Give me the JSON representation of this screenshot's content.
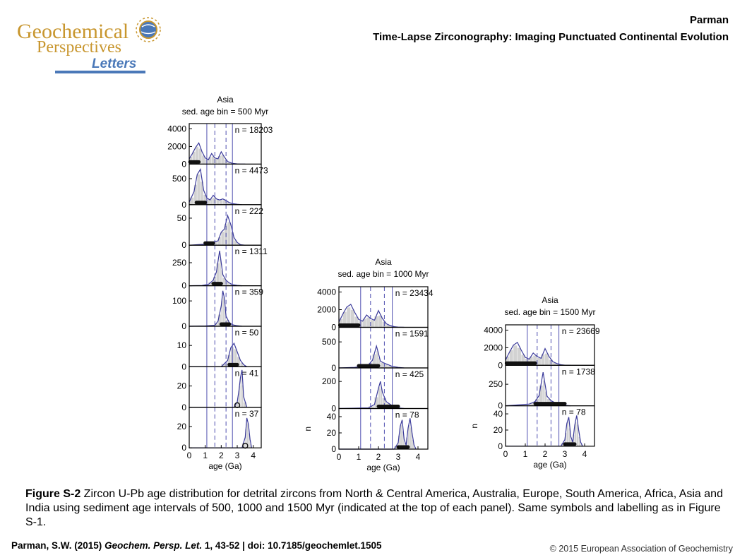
{
  "header": {
    "journal_logo_line1": "Geochemical",
    "journal_logo_line2": "Perspectives",
    "journal_logo_line3": "Letters",
    "author": "Parman",
    "title": "Time-Lapse Zirconography: Imaging Punctuated Continental Evolution"
  },
  "colors": {
    "logo_gold": "#c8962e",
    "logo_blue": "#4a78b8",
    "histogram_fill": "#d2d2d2",
    "curve": "#3a3a9a",
    "reference_line": "#5050b0"
  },
  "caption": {
    "label": "Figure S-2",
    "text": " Zircon U-Pb age distribution for detrital zircons from North & Central America, Australia, Europe, South America, Africa, Asia and India using sediment age intervals of 500, 1000 and 1500 Myr (indicated at the top of each panel). Same symbols and labelling as in Figure S-1."
  },
  "footer": {
    "author": "Parman, S.W. (2015) ",
    "journal": "Geochem. Persp. Let.",
    "details": " 1, 43-52 | doi: 10.7185/geochemlet.1505",
    "copyright": "© 2015 European Association of Geochemistry"
  },
  "chart_data": [
    {
      "type": "area",
      "title": "Asia",
      "subtitle": "sed. age bin = 500 Myr",
      "xlabel": "age (Ga)",
      "ylabel": "",
      "xlim": [
        0,
        4.5
      ],
      "xticks": [
        "0",
        "1",
        "2",
        "3",
        "4"
      ],
      "reference_lines": {
        "solid": [
          1.1,
          2.7
        ],
        "dashed": [
          1.6,
          2.3
        ]
      },
      "panels": [
        {
          "n_label": "n = 18203",
          "yticks": [
            "4000",
            "2000",
            "0"
          ],
          "ymax": 4600,
          "x": [
            0,
            0.2,
            0.4,
            0.6,
            0.8,
            1.0,
            1.2,
            1.4,
            1.6,
            1.8,
            2.0,
            2.2,
            2.4,
            2.6,
            2.8,
            3.0,
            3.2,
            3.5
          ],
          "y": [
            600,
            1200,
            1900,
            2400,
            1400,
            700,
            500,
            1200,
            700,
            600,
            1400,
            800,
            300,
            150,
            60,
            20,
            5,
            0
          ],
          "bin_markers": [
            [
              0.05,
              0.45
            ],
            [
              0.45,
              0.6
            ]
          ]
        },
        {
          "n_label": "n = 4473",
          "yticks": [
            "500",
            "0"
          ],
          "ymax": 780,
          "x": [
            0,
            0.3,
            0.5,
            0.7,
            0.9,
            1.1,
            1.3,
            1.5,
            1.7,
            1.9,
            2.1,
            2.3,
            2.5,
            2.7,
            3.0,
            3.3
          ],
          "y": [
            50,
            250,
            580,
            680,
            280,
            130,
            90,
            180,
            110,
            90,
            110,
            80,
            40,
            20,
            8,
            0
          ],
          "bin_markers": [
            [
              0.45,
              1.0
            ]
          ]
        },
        {
          "n_label": "n = 222",
          "yticks": [
            "50",
            "0"
          ],
          "ymax": 75,
          "x": [
            0,
            0.5,
            1.0,
            1.2,
            1.5,
            1.8,
            2.0,
            2.2,
            2.4,
            2.6,
            2.8,
            3.0,
            3.2,
            3.5
          ],
          "y": [
            0,
            1,
            2,
            4,
            6,
            8,
            24,
            30,
            55,
            38,
            14,
            5,
            1,
            0
          ],
          "bin_markers": [
            [
              1.0,
              1.5
            ]
          ]
        },
        {
          "n_label": "n = 1311",
          "yticks": [
            "250",
            "0"
          ],
          "ymax": 440,
          "x": [
            0,
            0.8,
            1.2,
            1.5,
            1.7,
            1.9,
            2.0,
            2.1,
            2.3,
            2.5,
            2.7,
            3.0,
            3.3
          ],
          "y": [
            0,
            3,
            15,
            60,
            150,
            380,
            250,
            120,
            60,
            30,
            12,
            4,
            0
          ],
          "bin_markers": [
            [
              1.5,
              2.0
            ]
          ]
        },
        {
          "n_label": "n = 359",
          "yticks": [
            "100",
            "0"
          ],
          "ymax": 160,
          "x": [
            0,
            1.0,
            1.6,
            1.8,
            2.0,
            2.1,
            2.2,
            2.3,
            2.5,
            2.7,
            3.0,
            3.3
          ],
          "y": [
            0,
            1,
            4,
            20,
            80,
            140,
            110,
            40,
            15,
            6,
            2,
            0
          ],
          "bin_markers": [
            [
              2.0,
              2.5
            ]
          ]
        },
        {
          "n_label": "n = 50",
          "yticks": [
            "10",
            "0"
          ],
          "ymax": 19,
          "x": [
            0,
            2.0,
            2.4,
            2.6,
            2.8,
            3.0,
            3.2,
            3.4,
            3.6
          ],
          "y": [
            0,
            0,
            3,
            9,
            11,
            7,
            3,
            1,
            0
          ],
          "bin_markers": [
            [
              2.5,
              3.0
            ]
          ]
        },
        {
          "n_label": "n = 41",
          "yticks": [
            "20",
            "0"
          ],
          "ymax": 38,
          "x": [
            0,
            2.8,
            3.0,
            3.1,
            3.2,
            3.3,
            3.4,
            3.6
          ],
          "y": [
            0,
            0,
            5,
            15,
            28,
            35,
            10,
            0
          ],
          "bin_markers": [
            [
              3.0,
              3.05
            ]
          ]
        },
        {
          "n_label": "n = 37",
          "yticks": [
            "20",
            "0"
          ],
          "ymax": 38,
          "x": [
            0,
            3.3,
            3.5,
            3.6,
            3.7,
            3.8,
            3.9
          ],
          "y": [
            0,
            0,
            10,
            28,
            22,
            8,
            0
          ],
          "bin_markers": [
            [
              3.5,
              3.5
            ]
          ]
        }
      ]
    },
    {
      "type": "area",
      "title": "Asia",
      "subtitle": "sed. age bin = 1000 Myr",
      "xlabel": "age (Ga)",
      "ylabel": "n",
      "xlim": [
        0,
        4.5
      ],
      "xticks": [
        "0",
        "1",
        "2",
        "3",
        "4"
      ],
      "reference_lines": {
        "solid": [
          1.1,
          2.7
        ],
        "dashed": [
          1.6,
          2.3
        ]
      },
      "panels": [
        {
          "n_label": "n = 23434",
          "yticks": [
            "4000",
            "2000",
            "0"
          ],
          "ymax": 4600,
          "x": [
            0,
            0.2,
            0.4,
            0.6,
            0.8,
            1.0,
            1.2,
            1.4,
            1.6,
            1.8,
            2.0,
            2.2,
            2.4,
            2.6,
            2.8,
            3.0,
            3.3
          ],
          "y": [
            600,
            1500,
            2300,
            2600,
            1700,
            900,
            700,
            1400,
            1000,
            800,
            1900,
            1000,
            400,
            200,
            70,
            20,
            0
          ],
          "bin_markers": [
            [
              0.05,
              1.0
            ]
          ]
        },
        {
          "n_label": "n = 1591",
          "yticks": [
            "500",
            "0"
          ],
          "ymax": 780,
          "x": [
            0,
            0.8,
            1.2,
            1.5,
            1.7,
            1.9,
            2.0,
            2.1,
            2.3,
            2.5,
            2.7,
            3.0,
            3.3
          ],
          "y": [
            0,
            10,
            30,
            60,
            150,
            420,
            280,
            130,
            90,
            60,
            30,
            10,
            0
          ],
          "bin_markers": [
            [
              1.0,
              2.0
            ]
          ]
        },
        {
          "n_label": "n = 425",
          "yticks": [
            "200",
            "0"
          ],
          "ymax": 300,
          "x": [
            0,
            1.5,
            1.8,
            2.0,
            2.1,
            2.2,
            2.4,
            2.6,
            2.8,
            3.0,
            3.3
          ],
          "y": [
            0,
            5,
            30,
            150,
            200,
            120,
            50,
            30,
            15,
            5,
            0
          ],
          "bin_markers": [
            [
              2.0,
              3.0
            ]
          ]
        },
        {
          "n_label": "n = 78",
          "yticks": [
            "40",
            "20",
            "0"
          ],
          "ymax": 50,
          "x": [
            0,
            2.8,
            3.0,
            3.1,
            3.2,
            3.3,
            3.4,
            3.5,
            3.6,
            3.7,
            3.8,
            3.9
          ],
          "y": [
            0,
            0,
            8,
            28,
            36,
            12,
            5,
            26,
            38,
            20,
            5,
            0
          ],
          "bin_markers": [
            [
              3.0,
              3.5
            ]
          ]
        }
      ]
    },
    {
      "type": "area",
      "title": "Asia",
      "subtitle": "sed. age bin = 1500 Myr",
      "xlabel": "age (Ga)",
      "ylabel": "n",
      "xlim": [
        0,
        4.5
      ],
      "xticks": [
        "0",
        "1",
        "2",
        "3",
        "4"
      ],
      "reference_lines": {
        "solid": [
          1.1,
          2.7
        ],
        "dashed": [
          1.6,
          2.3
        ]
      },
      "panels": [
        {
          "n_label": "n = 23669",
          "yticks": [
            "4000",
            "2000",
            "0"
          ],
          "ymax": 4600,
          "x": [
            0,
            0.2,
            0.4,
            0.6,
            0.8,
            1.0,
            1.2,
            1.4,
            1.6,
            1.8,
            2.0,
            2.2,
            2.4,
            2.6,
            2.8,
            3.0,
            3.3
          ],
          "y": [
            600,
            1500,
            2300,
            2600,
            1700,
            900,
            700,
            1400,
            1000,
            800,
            1900,
            1000,
            400,
            200,
            70,
            20,
            0
          ],
          "bin_markers": [
            [
              0.05,
              1.5
            ]
          ]
        },
        {
          "n_label": "n = 1738",
          "yticks": [
            "250",
            "0"
          ],
          "ymax": 470,
          "x": [
            0,
            1.2,
            1.5,
            1.7,
            1.9,
            2.0,
            2.1,
            2.3,
            2.5,
            2.7,
            3.0,
            3.3
          ],
          "y": [
            0,
            20,
            50,
            120,
            390,
            250,
            110,
            60,
            35,
            15,
            5,
            0
          ],
          "bin_markers": [
            [
              1.5,
              3.0
            ]
          ]
        },
        {
          "n_label": "n = 78",
          "yticks": [
            "40",
            "20",
            "0"
          ],
          "ymax": 50,
          "x": [
            0,
            2.8,
            3.0,
            3.1,
            3.2,
            3.3,
            3.4,
            3.5,
            3.6,
            3.7,
            3.8,
            3.9
          ],
          "y": [
            0,
            0,
            8,
            28,
            36,
            12,
            5,
            26,
            38,
            20,
            5,
            0
          ],
          "bin_markers": [
            [
              3.0,
              3.5
            ]
          ]
        }
      ]
    }
  ]
}
